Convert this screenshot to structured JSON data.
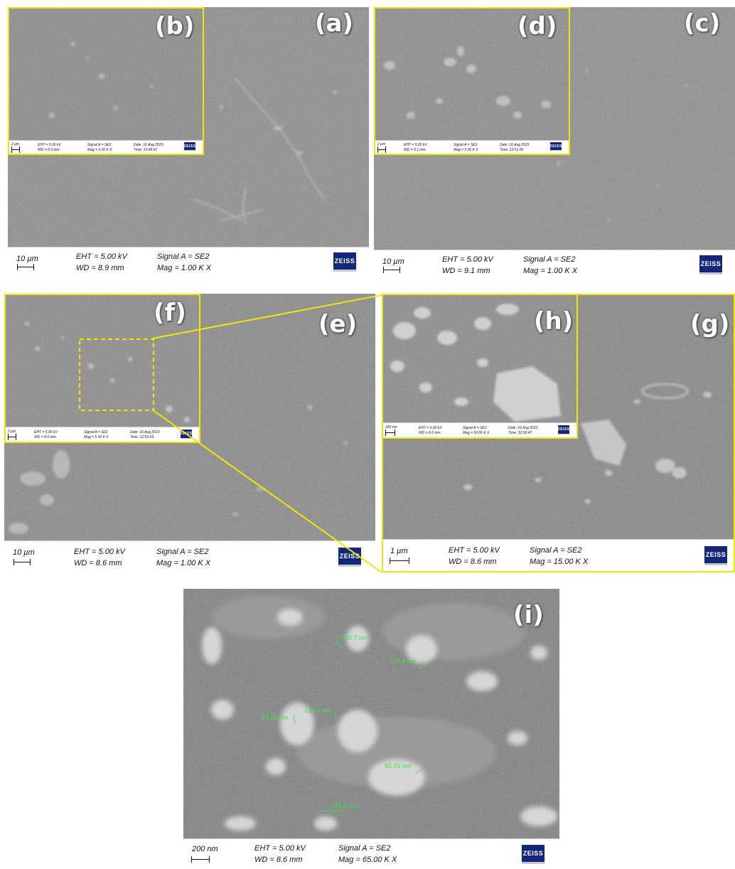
{
  "panels": {
    "a": {
      "label": "(a)",
      "scale": "10 µm",
      "eht": "EHT = 5.00 kV",
      "wd": "WD = 8.9 mm",
      "signal": "Signal A = SE2",
      "mag": "Mag = 1.00 K X",
      "logo": "ZEISS"
    },
    "b": {
      "label": "(b)",
      "scale": "2 µm",
      "eht": "EHT = 5.00 kV",
      "wd": "WD = 8.9 mm",
      "signal": "Signal A = SE2",
      "mag": "Mag = 5.00 K X",
      "date": "Date :16 Aug 2023",
      "time": "Time :10:46:47",
      "logo": "ZEISS"
    },
    "c": {
      "label": "(c)",
      "scale": "10 µm",
      "eht": "EHT = 5.00 kV",
      "wd": "WD = 9.1 mm",
      "signal": "Signal A = SE2",
      "mag": "Mag = 1.00 K X",
      "logo": "ZEISS"
    },
    "d": {
      "label": "(d)",
      "scale": "2 µm",
      "eht": "EHT = 5.00 kV",
      "wd": "WD = 9.1 mm",
      "signal": "Signal A = SE2",
      "mag": "Mag = 5.00 K X",
      "date": "Date :16 Aug 2023",
      "time": "Time :10:51:26",
      "logo": "ZEISS"
    },
    "e": {
      "label": "(e)",
      "scale": "10 µm",
      "eht": "EHT = 5.00 kV",
      "wd": "WD = 8.6 mm",
      "signal": "Signal A = SE2",
      "mag": "Mag = 1.00 K X",
      "logo": "ZEISS"
    },
    "f": {
      "label": "(f)",
      "scale": "2 µm",
      "eht": "EHT = 5.00 kV",
      "wd": "WD = 8.6 mm",
      "signal": "Signal A = SE2",
      "mag": "Mag = 5.00 K X",
      "date": "Date :16 Aug 2023",
      "time": "Time :12:50:03",
      "logo": "ZEISS"
    },
    "g": {
      "label": "(g)",
      "scale": "1 µm",
      "eht": "EHT = 5.00 kV",
      "wd": "WD = 8.6 mm",
      "signal": "Signal A = SE2",
      "mag": "Mag = 15.00 K X",
      "logo": "ZEISS"
    },
    "h": {
      "label": "(h)",
      "scale": "200 nm",
      "eht": "EHT = 5.00 kV",
      "wd": "WD = 8.6 mm",
      "signal": "Signal A = SE2",
      "mag": "Mag = 50.00 K X",
      "date": "Date :16 Aug 2023",
      "time": "Time :12:50:47",
      "logo": "ZEISS"
    },
    "i": {
      "label": "(i)",
      "scale": "200 nm",
      "eht": "EHT = 5.00 kV",
      "wd": "WD = 8.6 mm",
      "signal": "Signal A = SE2",
      "mag": "Mag = 65.00 K X",
      "logo": "ZEISS",
      "measurements": [
        "100.7 nm",
        "114.4 nm",
        "84.55 nm",
        "124.0 nm",
        "95.93 nm",
        "103.9 nm"
      ]
    }
  },
  "colors": {
    "inset_border": "#f2e600",
    "measurement": "#38e64a",
    "zeiss_blue": "#14287a"
  }
}
